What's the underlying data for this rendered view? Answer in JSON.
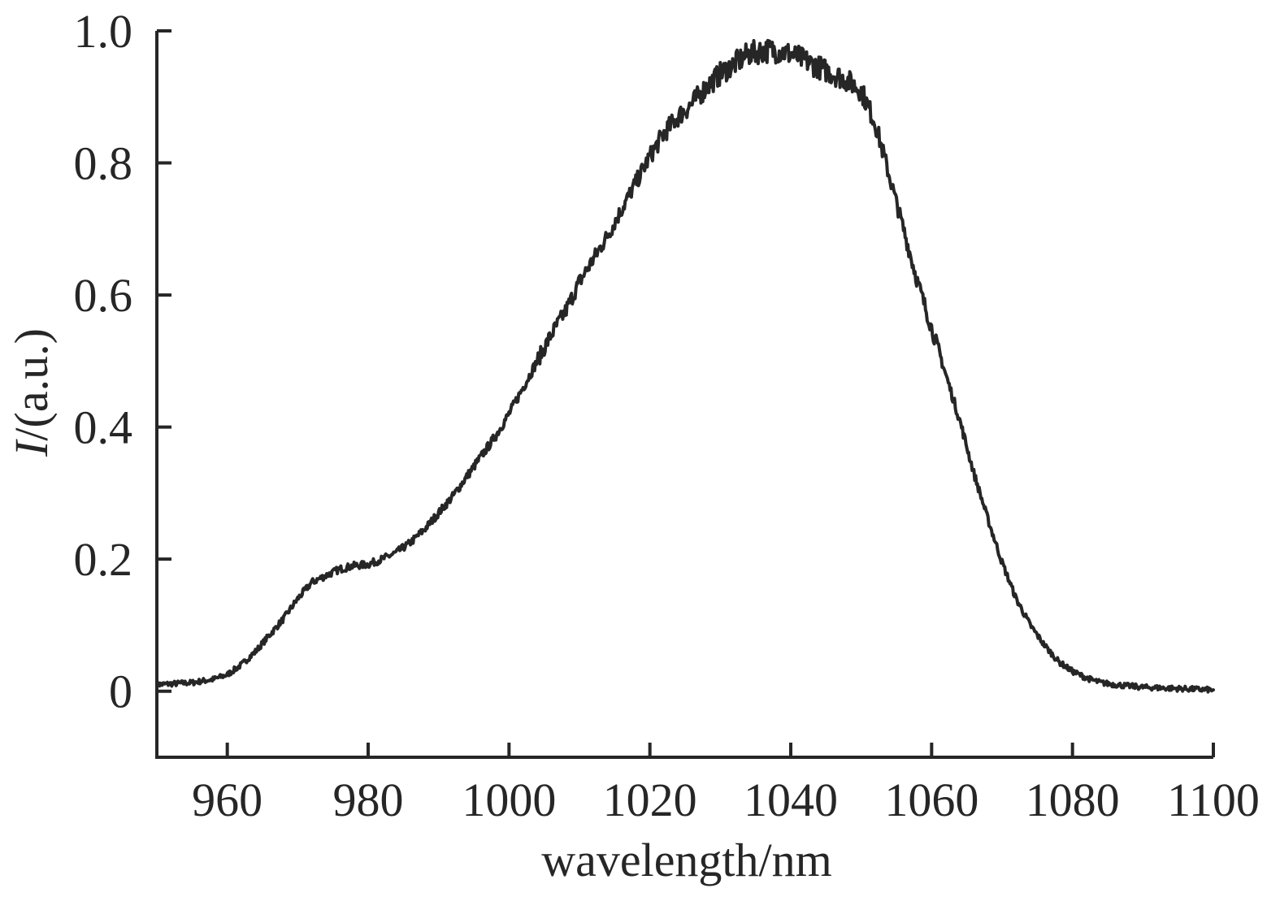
{
  "chart_data": {
    "type": "line",
    "title": "",
    "xlabel": "wavelength/nm",
    "ylabel_italic": "I",
    "ylabel_rest": "/(a.u.)",
    "xlim": [
      950,
      1100
    ],
    "ylim": [
      -0.1,
      1.0
    ],
    "xticks": [
      960,
      980,
      1000,
      1020,
      1040,
      1060,
      1080,
      1100
    ],
    "yticks": [
      0,
      0.2,
      0.4,
      0.6,
      0.8,
      1.0
    ],
    "ytick_labels": [
      "0",
      "0.2",
      "0.4",
      "0.6",
      "0.8",
      "1.0"
    ],
    "grid": false,
    "line_color": "#262626",
    "axis_color": "#262626",
    "series": [
      {
        "x": [
          950,
          955,
          958,
          960,
          962,
          964,
          966,
          968,
          970,
          972,
          974,
          976,
          978,
          980,
          982,
          984,
          986,
          988,
          990,
          992,
          994,
          996,
          998,
          1000,
          1002,
          1004,
          1006,
          1008,
          1010,
          1012,
          1014,
          1016,
          1018,
          1020,
          1022,
          1024,
          1026,
          1028,
          1030,
          1032,
          1034,
          1036,
          1038,
          1040,
          1042,
          1044,
          1046,
          1048,
          1050,
          1052,
          1054,
          1056,
          1058,
          1060,
          1062,
          1064,
          1066,
          1068,
          1070,
          1072,
          1074,
          1076,
          1078,
          1080,
          1082,
          1084,
          1086,
          1088,
          1090,
          1095,
          1100
        ],
        "y": [
          0.01,
          0.013,
          0.018,
          0.025,
          0.04,
          0.06,
          0.085,
          0.11,
          0.14,
          0.165,
          0.175,
          0.185,
          0.19,
          0.192,
          0.2,
          0.21,
          0.225,
          0.245,
          0.27,
          0.295,
          0.325,
          0.355,
          0.385,
          0.42,
          0.46,
          0.5,
          0.54,
          0.575,
          0.62,
          0.655,
          0.69,
          0.73,
          0.77,
          0.81,
          0.845,
          0.87,
          0.89,
          0.915,
          0.935,
          0.95,
          0.965,
          0.97,
          0.97,
          0.965,
          0.955,
          0.945,
          0.935,
          0.925,
          0.91,
          0.86,
          0.78,
          0.7,
          0.62,
          0.55,
          0.48,
          0.41,
          0.33,
          0.26,
          0.195,
          0.14,
          0.1,
          0.07,
          0.045,
          0.03,
          0.02,
          0.013,
          0.01,
          0.008,
          0.006,
          0.004,
          0.002
        ]
      }
    ]
  }
}
